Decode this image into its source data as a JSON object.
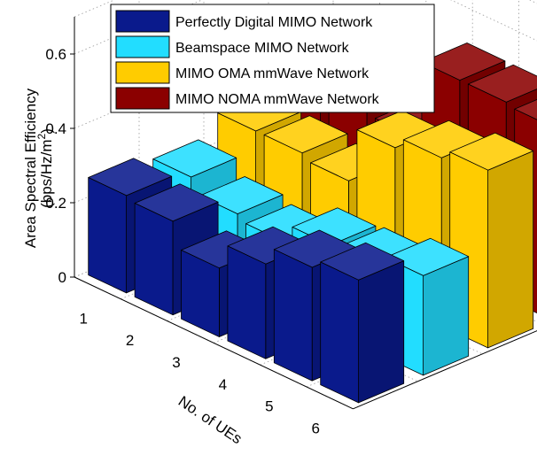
{
  "chart_data": {
    "type": "bar",
    "subtype": "3d-grouped-bar",
    "xlabel": "No. of UEs",
    "ylabel_line1": "Area Spectral Efficiency",
    "ylabel_line2": "(bps/Hz/m",
    "ylabel_sup": "2",
    "ylabel_end": ")",
    "categories": [
      "1",
      "2",
      "3",
      "4",
      "5",
      "6"
    ],
    "yticks": [
      "0",
      "0.2",
      "0.4",
      "0.6"
    ],
    "ylim": [
      0,
      0.7
    ],
    "grid": true,
    "legend_position": "top-right",
    "series": [
      {
        "name": "Perfectly Digital MIMO Network",
        "color": "#0a1a8c",
        "values": [
          0.262,
          0.252,
          0.185,
          0.255,
          0.305,
          0.33
        ]
      },
      {
        "name": "Beamspace MIMO Network",
        "color": "#22ddff",
        "values": [
          0.238,
          0.198,
          0.182,
          0.232,
          0.238,
          0.268
        ]
      },
      {
        "name": "MIMO OMA mmWave Network",
        "color": "#ffcc00",
        "values": [
          0.288,
          0.288,
          0.272,
          0.42,
          0.452,
          0.478
        ]
      },
      {
        "name": "MIMO NOMA mmWave Network",
        "color": "#8b0000",
        "values": [
          0.398,
          0.378,
          0.318,
          0.528,
          0.528,
          0.52
        ]
      }
    ]
  }
}
